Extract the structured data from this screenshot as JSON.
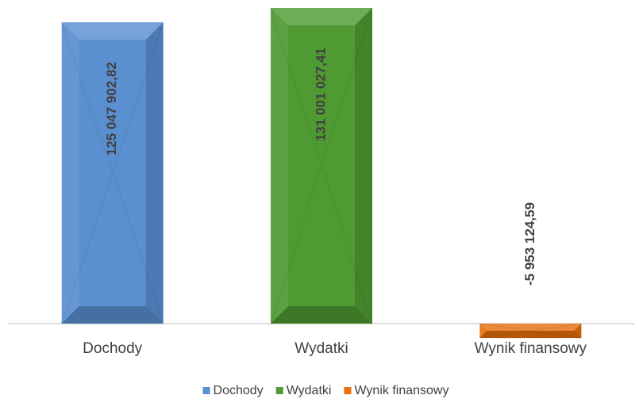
{
  "chart_data": {
    "type": "bar",
    "categories": [
      "Dochody",
      "Wydatki",
      "Wynik finansowy"
    ],
    "series": [
      {
        "name": "Dochody",
        "color": "#5a8fd0",
        "values": [
          125047902.82,
          null,
          null
        ],
        "value_labels": [
          "125 047 902,82",
          null,
          null
        ]
      },
      {
        "name": "Wydatki",
        "color": "#4f9a32",
        "values": [
          null,
          131001027.41,
          null
        ],
        "value_labels": [
          null,
          "131 001 027,41",
          null
        ]
      },
      {
        "name": "Wynik finansowy",
        "color": "#e8700f",
        "values": [
          null,
          null,
          -5953124.59
        ],
        "value_labels": [
          null,
          null,
          "-5 953 124,59"
        ]
      }
    ],
    "legend": "bottom"
  }
}
